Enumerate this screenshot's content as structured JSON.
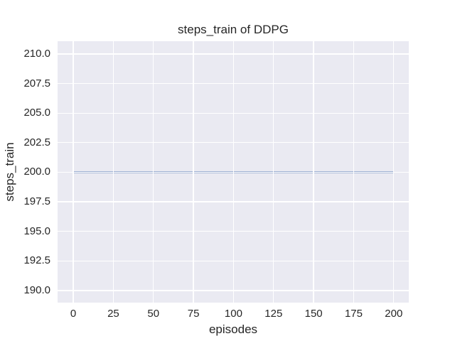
{
  "chart_data": {
    "type": "line",
    "title": "steps_train of DDPG",
    "xlabel": "episodes",
    "ylabel": "steps_train",
    "x_ticks": [
      0,
      25,
      50,
      75,
      100,
      125,
      150,
      175,
      200
    ],
    "x_tick_labels": [
      "0",
      "25",
      "50",
      "75",
      "100",
      "125",
      "150",
      "175",
      "200"
    ],
    "y_ticks": [
      190,
      192.5,
      195,
      197.5,
      200,
      202.5,
      205,
      207.5,
      210
    ],
    "y_tick_labels": [
      "190.0",
      "192.5",
      "195.0",
      "197.5",
      "200.0",
      "202.5",
      "205.0",
      "207.5",
      "210.0"
    ],
    "xlim": [
      -9.8,
      209.4
    ],
    "ylim": [
      188.97,
      211.08
    ],
    "grid": true,
    "legend": false,
    "series": [
      {
        "name": "steps_train",
        "color": "#4c72b0",
        "constant_value": 200,
        "x_start": 0,
        "x_end": 200,
        "points": [
          [
            0,
            200
          ],
          [
            200,
            200
          ]
        ]
      }
    ],
    "colors": {
      "figure_background": "#ffffff",
      "plot_background": "#eaeaf2",
      "gridline": "#ffffff",
      "line": "#4c72b0",
      "text": "#262626"
    }
  }
}
